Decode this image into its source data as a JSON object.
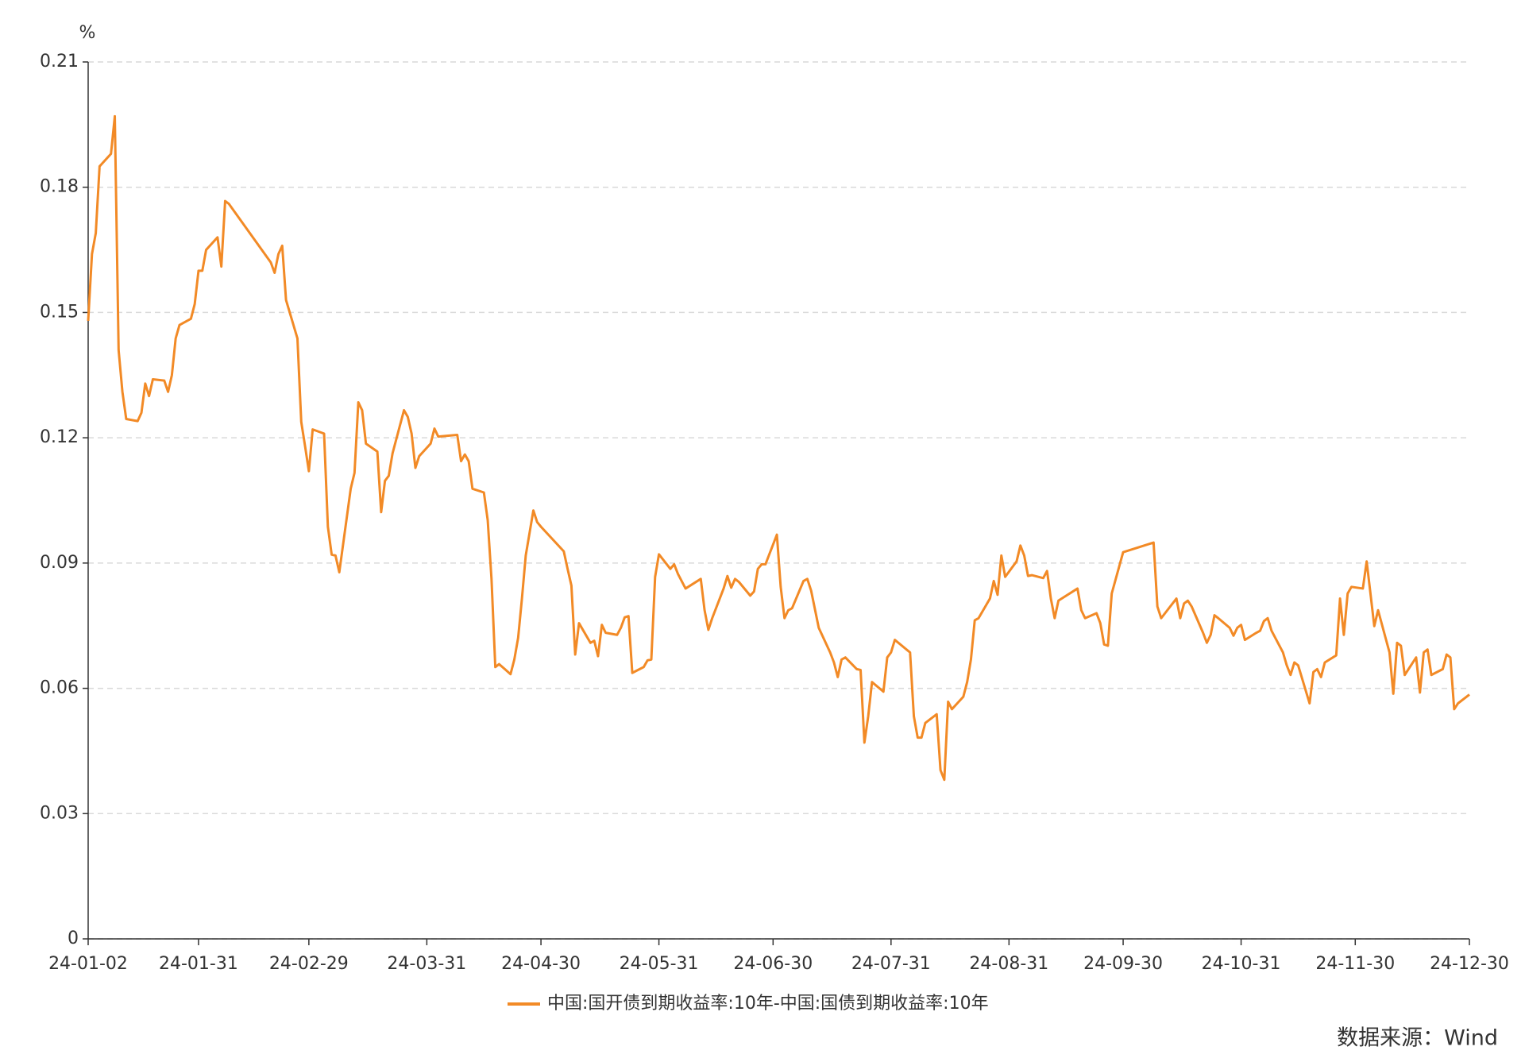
{
  "chart_data": {
    "type": "line",
    "y_label": "%",
    "x": [
      "24-01-02",
      "24-01-03",
      "24-01-04",
      "24-01-05",
      "24-01-08",
      "24-01-09",
      "24-01-10",
      "24-01-11",
      "24-01-12",
      "24-01-15",
      "24-01-16",
      "24-01-17",
      "24-01-18",
      "24-01-19",
      "24-01-22",
      "24-01-23",
      "24-01-24",
      "24-01-25",
      "24-01-26",
      "24-01-29",
      "24-01-30",
      "24-01-31",
      "24-02-01",
      "24-02-02",
      "24-02-05",
      "24-02-06",
      "24-02-07",
      "24-02-08",
      "24-02-19",
      "24-02-20",
      "24-02-21",
      "24-02-22",
      "24-02-23",
      "24-02-26",
      "24-02-27",
      "24-02-28",
      "24-02-29",
      "24-03-01",
      "24-03-04",
      "24-03-05",
      "24-03-06",
      "24-03-07",
      "24-03-08",
      "24-03-11",
      "24-03-12",
      "24-03-13",
      "24-03-14",
      "24-03-15",
      "24-03-18",
      "24-03-19",
      "24-03-20",
      "24-03-21",
      "24-03-22",
      "24-03-25",
      "24-03-26",
      "24-03-27",
      "24-03-28",
      "24-03-29",
      "24-04-01",
      "24-04-02",
      "24-04-03",
      "24-04-08",
      "24-04-09",
      "24-04-10",
      "24-04-11",
      "24-04-12",
      "24-04-15",
      "24-04-16",
      "24-04-17",
      "24-04-18",
      "24-04-19",
      "24-04-22",
      "24-04-23",
      "24-04-24",
      "24-04-25",
      "24-04-26",
      "24-04-28",
      "24-04-29",
      "24-04-30",
      "24-05-06",
      "24-05-07",
      "24-05-08",
      "24-05-09",
      "24-05-10",
      "24-05-13",
      "24-05-14",
      "24-05-15",
      "24-05-16",
      "24-05-17",
      "24-05-20",
      "24-05-21",
      "24-05-22",
      "24-05-23",
      "24-05-24",
      "24-05-27",
      "24-05-28",
      "24-05-29",
      "24-05-30",
      "24-05-31",
      "24-06-03",
      "24-06-04",
      "24-06-05",
      "24-06-07",
      "24-06-11",
      "24-06-12",
      "24-06-13",
      "24-06-14",
      "24-06-17",
      "24-06-18",
      "24-06-19",
      "24-06-20",
      "24-06-21",
      "24-06-24",
      "24-06-25",
      "24-06-26",
      "24-06-27",
      "24-06-28",
      "24-07-01",
      "24-07-02",
      "24-07-03",
      "24-07-04",
      "24-07-05",
      "24-07-08",
      "24-07-09",
      "24-07-10",
      "24-07-12",
      "24-07-15",
      "24-07-16",
      "24-07-17",
      "24-07-18",
      "24-07-19",
      "24-07-22",
      "24-07-23",
      "24-07-24",
      "24-07-25",
      "24-07-26",
      "24-07-29",
      "24-07-30",
      "24-07-31",
      "24-08-01",
      "24-08-05",
      "24-08-06",
      "24-08-07",
      "24-08-08",
      "24-08-09",
      "24-08-12",
      "24-08-13",
      "24-08-14",
      "24-08-15",
      "24-08-16",
      "24-08-19",
      "24-08-20",
      "24-08-21",
      "24-08-22",
      "24-08-23",
      "24-08-26",
      "24-08-27",
      "24-08-28",
      "24-08-29",
      "24-08-30",
      "24-09-02",
      "24-09-03",
      "24-09-04",
      "24-09-05",
      "24-09-06",
      "24-09-09",
      "24-09-10",
      "24-09-11",
      "24-09-12",
      "24-09-13",
      "24-09-18",
      "24-09-19",
      "24-09-20",
      "24-09-23",
      "24-09-24",
      "24-09-25",
      "24-09-26",
      "24-09-27",
      "24-09-30",
      "24-10-08",
      "24-10-09",
      "24-10-10",
      "24-10-14",
      "24-10-15",
      "24-10-16",
      "24-10-17",
      "24-10-18",
      "24-10-21",
      "24-10-22",
      "24-10-23",
      "24-10-24",
      "24-10-25",
      "24-10-28",
      "24-10-29",
      "24-10-30",
      "24-10-31",
      "24-11-01",
      "24-11-04",
      "24-11-05",
      "24-11-06",
      "24-11-07",
      "24-11-08",
      "24-11-11",
      "24-11-12",
      "24-11-13",
      "24-11-14",
      "24-11-15",
      "24-11-18",
      "24-11-19",
      "24-11-20",
      "24-11-21",
      "24-11-22",
      "24-11-25",
      "24-11-26",
      "24-11-27",
      "24-11-28",
      "24-11-29",
      "24-12-02",
      "24-12-03",
      "24-12-04",
      "24-12-05",
      "24-12-06",
      "24-12-09",
      "24-12-10",
      "24-12-11",
      "24-12-12",
      "24-12-13",
      "24-12-16",
      "24-12-17",
      "24-12-18",
      "24-12-19",
      "24-12-20",
      "24-12-23",
      "24-12-24",
      "24-12-25",
      "24-12-26",
      "24-12-27",
      "24-12-30"
    ],
    "series": [
      {
        "name": "中国:国开债到期收益率:10年-中国:国债到期收益率:10年",
        "color": "#f28a26",
        "values": [
          0.148,
          0.164,
          0.169,
          0.185,
          0.188,
          0.197,
          0.141,
          0.131,
          0.1245,
          0.124,
          0.126,
          0.133,
          0.13,
          0.134,
          0.1337,
          0.131,
          0.135,
          0.1438,
          0.147,
          0.1485,
          0.152,
          0.16,
          0.16,
          0.165,
          0.168,
          0.161,
          0.1767,
          0.176,
          0.162,
          0.1595,
          0.164,
          0.166,
          0.153,
          0.1438,
          0.1238,
          0.118,
          0.112,
          0.122,
          0.121,
          0.0987,
          0.092,
          0.0918,
          0.0878,
          0.1078,
          0.1116,
          0.1285,
          0.1266,
          0.1186,
          0.1167,
          0.1022,
          0.1097,
          0.1109,
          0.1163,
          0.1266,
          0.125,
          0.121,
          0.1128,
          0.1156,
          0.1186,
          0.1222,
          0.1203,
          0.1207,
          0.1144,
          0.116,
          0.1144,
          0.1078,
          0.1069,
          0.1003,
          0.0862,
          0.0651,
          0.0658,
          0.0634,
          0.0669,
          0.0721,
          0.0815,
          0.0918,
          0.1026,
          0.0998,
          0.0987,
          0.0928,
          0.0886,
          0.0846,
          0.0681,
          0.0756,
          0.0709,
          0.0714,
          0.0677,
          0.0752,
          0.0733,
          0.0728,
          0.0745,
          0.077,
          0.0773,
          0.0637,
          0.0651,
          0.0667,
          0.0669,
          0.0867,
          0.0921,
          0.0886,
          0.0897,
          0.0874,
          0.0839,
          0.0862,
          0.0787,
          0.074,
          0.0768,
          0.0839,
          0.0869,
          0.0841,
          0.0862,
          0.0855,
          0.0822,
          0.0832,
          0.0886,
          0.0897,
          0.0897,
          0.0968,
          0.0843,
          0.0768,
          0.0787,
          0.0792,
          0.0857,
          0.0862,
          0.0834,
          0.0745,
          0.0686,
          0.0662,
          0.0627,
          0.0669,
          0.0674,
          0.0646,
          0.0644,
          0.047,
          0.0533,
          0.0615,
          0.0592,
          0.0674,
          0.0686,
          0.0716,
          0.0686,
          0.0533,
          0.0482,
          0.0482,
          0.0517,
          0.0538,
          0.0404,
          0.0381,
          0.0568,
          0.055,
          0.058,
          0.0615,
          0.0669,
          0.0763,
          0.0768,
          0.0815,
          0.0857,
          0.0824,
          0.0918,
          0.0867,
          0.0904,
          0.0942,
          0.0918,
          0.0869,
          0.0871,
          0.0864,
          0.0881,
          0.0815,
          0.0768,
          0.081,
          0.0839,
          0.0787,
          0.0768,
          0.078,
          0.0756,
          0.0705,
          0.0702,
          0.0827,
          0.0926,
          0.0949,
          0.0796,
          0.0768,
          0.0815,
          0.0768,
          0.0803,
          0.081,
          0.0796,
          0.0733,
          0.0709,
          0.0728,
          0.0775,
          0.0768,
          0.0745,
          0.0726,
          0.0745,
          0.0752,
          0.0716,
          0.0733,
          0.0738,
          0.0761,
          0.0768,
          0.0738,
          0.0686,
          0.0655,
          0.0632,
          0.0662,
          0.0655,
          0.0564,
          0.0639,
          0.0646,
          0.0627,
          0.0662,
          0.0679,
          0.0815,
          0.0728,
          0.0827,
          0.0843,
          0.0839,
          0.0904,
          0.0827,
          0.0749,
          0.0787,
          0.0686,
          0.0587,
          0.0709,
          0.0702,
          0.0632,
          0.0674,
          0.059,
          0.0686,
          0.0693,
          0.0632,
          0.0646,
          0.0681,
          0.0674,
          0.055,
          0.0564,
          0.0585
        ]
      }
    ],
    "xlim": [
      "24-01-02",
      "24-12-30"
    ],
    "xticks": [
      "24-01-02",
      "24-01-31",
      "24-02-29",
      "24-03-31",
      "24-04-30",
      "24-05-31",
      "24-06-30",
      "24-07-31",
      "24-08-31",
      "24-09-30",
      "24-10-31",
      "24-11-30",
      "24-12-30"
    ],
    "ylim": [
      0,
      0.21
    ],
    "yticks": [
      0,
      0.03,
      0.06,
      0.09,
      0.12,
      0.15,
      0.18,
      0.21
    ],
    "grid": true,
    "legend": "bottom",
    "source": "数据来源：Wind",
    "source_color": "#c00000"
  }
}
